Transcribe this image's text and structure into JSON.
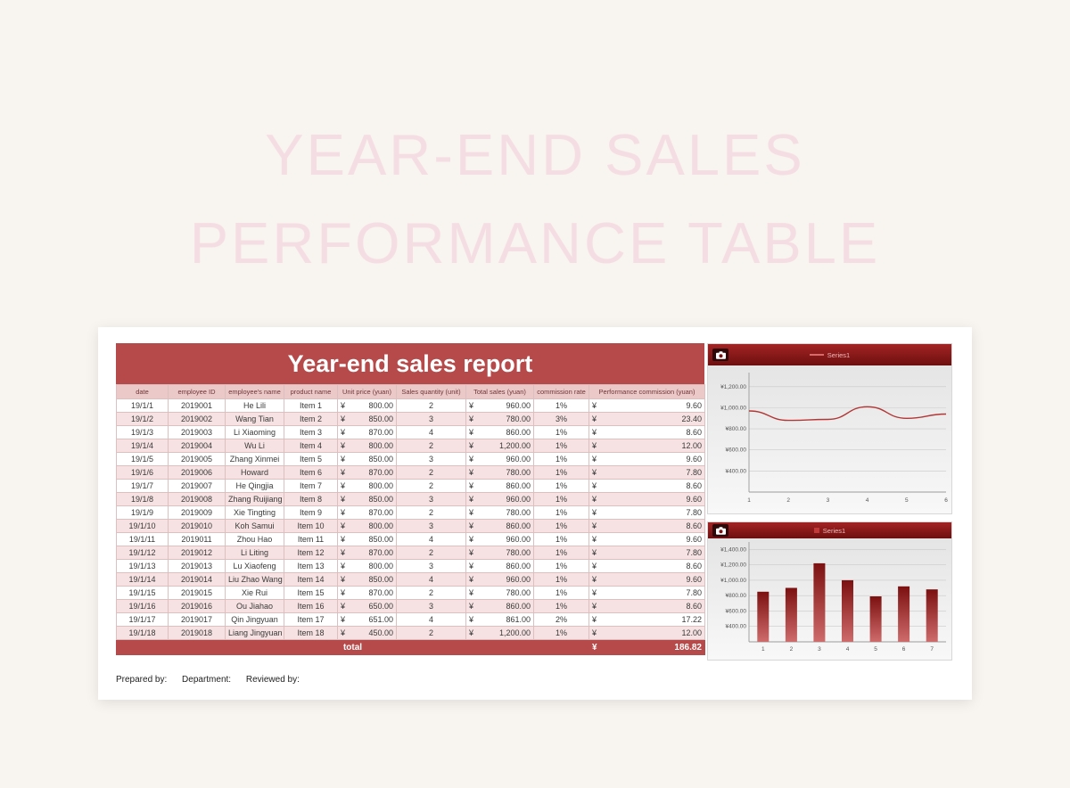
{
  "watermark": {
    "line1": "YEAR-END SALES",
    "line2": "PERFORMANCE TABLE"
  },
  "report": {
    "title": "Year-end sales report",
    "currency": "¥",
    "columns": [
      "date",
      "employee ID",
      "employee's name",
      "product name",
      "Unit price (yuan)",
      "Sales quantity (unit)",
      "Total sales (yuan)",
      "commission rate",
      "Performance commission (yuan)"
    ],
    "rows": [
      {
        "date": "19/1/1",
        "employee_id": "2019001",
        "employee_name": "He Lili",
        "product": "Item 1",
        "unit_price": "800.00",
        "quantity": "2",
        "total_sales": "960.00",
        "commission_rate": "1%",
        "commission": "9.60"
      },
      {
        "date": "19/1/2",
        "employee_id": "2019002",
        "employee_name": "Wang Tian",
        "product": "Item 2",
        "unit_price": "850.00",
        "quantity": "3",
        "total_sales": "780.00",
        "commission_rate": "3%",
        "commission": "23.40"
      },
      {
        "date": "19/1/3",
        "employee_id": "2019003",
        "employee_name": "Li Xiaoming",
        "product": "Item 3",
        "unit_price": "870.00",
        "quantity": "4",
        "total_sales": "860.00",
        "commission_rate": "1%",
        "commission": "8.60"
      },
      {
        "date": "19/1/4",
        "employee_id": "2019004",
        "employee_name": "Wu Li",
        "product": "Item 4",
        "unit_price": "800.00",
        "quantity": "2",
        "total_sales": "1,200.00",
        "commission_rate": "1%",
        "commission": "12.00"
      },
      {
        "date": "19/1/5",
        "employee_id": "2019005",
        "employee_name": "Zhang Xinmei",
        "product": "Item 5",
        "unit_price": "850.00",
        "quantity": "3",
        "total_sales": "960.00",
        "commission_rate": "1%",
        "commission": "9.60"
      },
      {
        "date": "19/1/6",
        "employee_id": "2019006",
        "employee_name": "Howard",
        "product": "Item 6",
        "unit_price": "870.00",
        "quantity": "2",
        "total_sales": "780.00",
        "commission_rate": "1%",
        "commission": "7.80"
      },
      {
        "date": "19/1/7",
        "employee_id": "2019007",
        "employee_name": "He Qingjia",
        "product": "Item 7",
        "unit_price": "800.00",
        "quantity": "2",
        "total_sales": "860.00",
        "commission_rate": "1%",
        "commission": "8.60"
      },
      {
        "date": "19/1/8",
        "employee_id": "2019008",
        "employee_name": "Zhang Ruijiang",
        "product": "Item 8",
        "unit_price": "850.00",
        "quantity": "3",
        "total_sales": "960.00",
        "commission_rate": "1%",
        "commission": "9.60"
      },
      {
        "date": "19/1/9",
        "employee_id": "2019009",
        "employee_name": "Xie Tingting",
        "product": "Item 9",
        "unit_price": "870.00",
        "quantity": "2",
        "total_sales": "780.00",
        "commission_rate": "1%",
        "commission": "7.80"
      },
      {
        "date": "19/1/10",
        "employee_id": "2019010",
        "employee_name": "Koh Samui",
        "product": "Item 10",
        "unit_price": "800.00",
        "quantity": "3",
        "total_sales": "860.00",
        "commission_rate": "1%",
        "commission": "8.60"
      },
      {
        "date": "19/1/11",
        "employee_id": "2019011",
        "employee_name": "Zhou Hao",
        "product": "Item 11",
        "unit_price": "850.00",
        "quantity": "4",
        "total_sales": "960.00",
        "commission_rate": "1%",
        "commission": "9.60"
      },
      {
        "date": "19/1/12",
        "employee_id": "2019012",
        "employee_name": "Li Liting",
        "product": "Item 12",
        "unit_price": "870.00",
        "quantity": "2",
        "total_sales": "780.00",
        "commission_rate": "1%",
        "commission": "7.80"
      },
      {
        "date": "19/1/13",
        "employee_id": "2019013",
        "employee_name": "Lu Xiaofeng",
        "product": "Item 13",
        "unit_price": "800.00",
        "quantity": "3",
        "total_sales": "860.00",
        "commission_rate": "1%",
        "commission": "8.60"
      },
      {
        "date": "19/1/14",
        "employee_id": "2019014",
        "employee_name": "Liu Zhao Wang",
        "product": "Item 14",
        "unit_price": "850.00",
        "quantity": "4",
        "total_sales": "960.00",
        "commission_rate": "1%",
        "commission": "9.60"
      },
      {
        "date": "19/1/15",
        "employee_id": "2019015",
        "employee_name": "Xie Rui",
        "product": "Item 15",
        "unit_price": "870.00",
        "quantity": "2",
        "total_sales": "780.00",
        "commission_rate": "1%",
        "commission": "7.80"
      },
      {
        "date": "19/1/16",
        "employee_id": "2019016",
        "employee_name": "Ou Jiahao",
        "product": "Item 16",
        "unit_price": "650.00",
        "quantity": "3",
        "total_sales": "860.00",
        "commission_rate": "1%",
        "commission": "8.60"
      },
      {
        "date": "19/1/17",
        "employee_id": "2019017",
        "employee_name": "Qin Jingyuan",
        "product": "Item 17",
        "unit_price": "651.00",
        "quantity": "4",
        "total_sales": "861.00",
        "commission_rate": "2%",
        "commission": "17.22"
      },
      {
        "date": "19/1/18",
        "employee_id": "2019018",
        "employee_name": "Liang Jingyuan",
        "product": "Item 18",
        "unit_price": "450.00",
        "quantity": "2",
        "total_sales": "1,200.00",
        "commission_rate": "1%",
        "commission": "12.00"
      }
    ],
    "total": {
      "label": "total",
      "currency": "¥",
      "value": "186.82"
    },
    "footer": {
      "prepared": "Prepared by:",
      "department": "Department:",
      "reviewed": "Reviewed by:"
    }
  },
  "colors": {
    "accent_red": "#b64a4a",
    "band_pink": "#f6e2e2",
    "header_pink": "#ecc9c9",
    "chart_header_red": "#7a1212",
    "line_red": "#b23636"
  },
  "chart_data": [
    {
      "type": "line",
      "title": "",
      "x": [
        1,
        2,
        3,
        4,
        5,
        6
      ],
      "series": [
        {
          "name": "Series1",
          "values": [
            970,
            880,
            890,
            1010,
            900,
            940
          ]
        }
      ],
      "ylim": [
        200,
        1300
      ],
      "yticks": [
        400,
        600,
        800,
        1000,
        1200
      ],
      "ytick_prefix": "¥",
      "grid": true,
      "legend_position": "top"
    },
    {
      "type": "bar",
      "title": "",
      "x": [
        1,
        2,
        3,
        4,
        5,
        6,
        7
      ],
      "series": [
        {
          "name": "Series1",
          "values": [
            850,
            900,
            1220,
            1000,
            790,
            920,
            880
          ]
        }
      ],
      "ylim": [
        200,
        1450
      ],
      "yticks": [
        400,
        600,
        800,
        1000,
        1200,
        1400
      ],
      "ytick_prefix": "¥",
      "grid": true,
      "legend_position": "top"
    }
  ]
}
